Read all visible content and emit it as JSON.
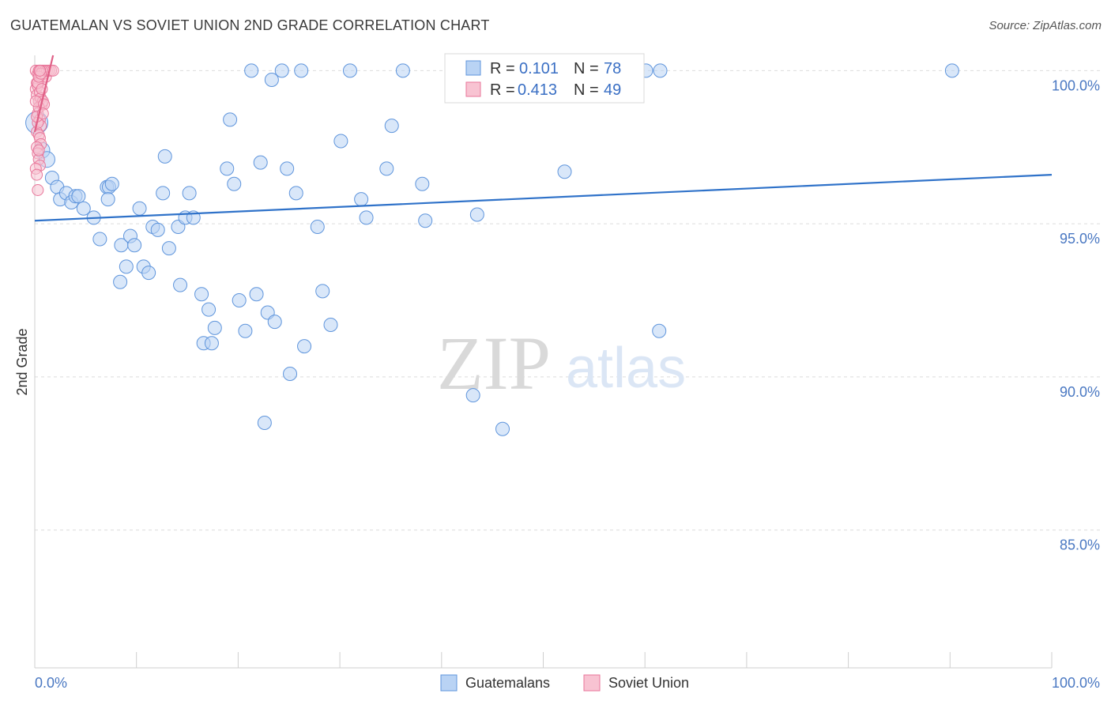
{
  "header": {
    "title": "GUATEMALAN VS SOVIET UNION 2ND GRADE CORRELATION CHART",
    "source": "Source: ZipAtlas.com"
  },
  "watermark": {
    "zip": "ZIP",
    "atlas": "atlas"
  },
  "legend_box": {
    "row1": {
      "r_label": "R =",
      "r_value": "0.101",
      "n_label": "N =",
      "n_value": "78"
    },
    "row2": {
      "r_label": "R =",
      "r_value": "0.413",
      "n_label": "N =",
      "n_value": "49"
    }
  },
  "bottom_legend": {
    "series1": "Guatemalans",
    "series2": "Soviet Union"
  },
  "colors": {
    "blue_fill": "#b9d3f4",
    "blue_stroke": "#5f95dc",
    "blue_line": "#2f72c9",
    "pink_fill": "#f8c3d2",
    "pink_stroke": "#e8769a",
    "pink_line": "#e05f86",
    "tick_text": "#4a78c2"
  },
  "chart_data": {
    "type": "scatter",
    "title": "GUATEMALAN VS SOVIET UNION 2ND GRADE CORRELATION CHART",
    "xlabel": "",
    "ylabel": "2nd Grade",
    "xlim": [
      0,
      100
    ],
    "ylim": [
      80.5,
      100.5
    ],
    "x_tick_labels": [
      "0.0%",
      "100.0%"
    ],
    "y_ticks": [
      85,
      90,
      95,
      100
    ],
    "y_tick_labels": [
      "85.0%",
      "90.0%",
      "95.0%",
      "100.0%"
    ],
    "grid": "horizontal dashed",
    "legend": "top-center",
    "series": [
      {
        "name": "Guatemalans",
        "r": 0.101,
        "n": 78,
        "trend": {
          "x": [
            0,
            100
          ],
          "y": [
            95.1,
            96.6
          ]
        },
        "points": [
          [
            0.2,
            98.3
          ],
          [
            0.7,
            97.4
          ],
          [
            1.2,
            97.1
          ],
          [
            1.7,
            96.5
          ],
          [
            2.2,
            96.2
          ],
          [
            2.5,
            95.8
          ],
          [
            3.1,
            96.0
          ],
          [
            3.6,
            95.7
          ],
          [
            4.0,
            95.9
          ],
          [
            4.3,
            95.9
          ],
          [
            4.8,
            95.5
          ],
          [
            5.8,
            95.2
          ],
          [
            6.4,
            94.5
          ],
          [
            7.1,
            96.2
          ],
          [
            7.3,
            96.2
          ],
          [
            7.2,
            95.8
          ],
          [
            7.6,
            96.3
          ],
          [
            8.4,
            93.1
          ],
          [
            8.5,
            94.3
          ],
          [
            9.0,
            93.6
          ],
          [
            9.4,
            94.6
          ],
          [
            9.8,
            94.3
          ],
          [
            10.3,
            95.5
          ],
          [
            10.7,
            93.6
          ],
          [
            11.2,
            93.4
          ],
          [
            11.6,
            94.9
          ],
          [
            12.1,
            94.8
          ],
          [
            12.6,
            96.0
          ],
          [
            12.8,
            97.2
          ],
          [
            13.2,
            94.2
          ],
          [
            14.1,
            94.9
          ],
          [
            14.3,
            93.0
          ],
          [
            14.8,
            95.2
          ],
          [
            15.2,
            96.0
          ],
          [
            15.6,
            95.2
          ],
          [
            16.4,
            92.7
          ],
          [
            16.6,
            91.1
          ],
          [
            17.1,
            92.2
          ],
          [
            17.4,
            91.1
          ],
          [
            17.7,
            91.6
          ],
          [
            18.9,
            96.8
          ],
          [
            19.2,
            98.4
          ],
          [
            19.6,
            96.3
          ],
          [
            20.1,
            92.5
          ],
          [
            20.7,
            91.5
          ],
          [
            21.3,
            100.0
          ],
          [
            21.8,
            92.7
          ],
          [
            22.2,
            97.0
          ],
          [
            22.6,
            88.5
          ],
          [
            22.9,
            92.1
          ],
          [
            23.3,
            99.7
          ],
          [
            23.6,
            91.8
          ],
          [
            24.3,
            100.0
          ],
          [
            24.8,
            96.8
          ],
          [
            25.1,
            90.1
          ],
          [
            25.7,
            96.0
          ],
          [
            26.2,
            100.0
          ],
          [
            26.5,
            91.0
          ],
          [
            27.8,
            94.9
          ],
          [
            28.3,
            92.8
          ],
          [
            29.1,
            91.7
          ],
          [
            30.1,
            97.7
          ],
          [
            31.0,
            100.0
          ],
          [
            32.1,
            95.8
          ],
          [
            32.6,
            95.2
          ],
          [
            34.6,
            96.8
          ],
          [
            35.1,
            98.2
          ],
          [
            36.2,
            100.0
          ],
          [
            38.1,
            96.3
          ],
          [
            38.4,
            95.1
          ],
          [
            43.1,
            89.4
          ],
          [
            43.5,
            95.3
          ],
          [
            46.0,
            88.3
          ],
          [
            52.1,
            96.7
          ],
          [
            60.1,
            100.0
          ],
          [
            61.5,
            100.0
          ],
          [
            61.4,
            91.5
          ],
          [
            90.2,
            100.0
          ]
        ]
      },
      {
        "name": "Soviet Union",
        "r": 0.413,
        "n": 49,
        "trend": {
          "x": [
            0,
            1.8
          ],
          "y": [
            98.0,
            100.5
          ]
        },
        "points": [
          [
            0.1,
            100.0
          ],
          [
            0.2,
            99.6
          ],
          [
            0.3,
            99.9
          ],
          [
            0.4,
            100.0
          ],
          [
            0.5,
            99.8
          ],
          [
            0.6,
            100.0
          ],
          [
            0.7,
            99.7
          ],
          [
            0.8,
            100.0
          ],
          [
            0.9,
            99.9
          ],
          [
            1.0,
            100.0
          ],
          [
            1.1,
            99.8
          ],
          [
            1.2,
            100.0
          ],
          [
            1.4,
            100.0
          ],
          [
            1.6,
            100.0
          ],
          [
            1.8,
            100.0
          ],
          [
            0.1,
            99.4
          ],
          [
            0.2,
            99.2
          ],
          [
            0.3,
            99.5
          ],
          [
            0.4,
            99.0
          ],
          [
            0.5,
            99.3
          ],
          [
            0.6,
            99.1
          ],
          [
            0.7,
            98.9
          ],
          [
            0.8,
            99.0
          ],
          [
            0.3,
            98.6
          ],
          [
            0.4,
            98.8
          ],
          [
            0.5,
            98.4
          ],
          [
            0.6,
            98.2
          ],
          [
            0.2,
            98.0
          ],
          [
            0.3,
            98.3
          ],
          [
            0.4,
            97.9
          ],
          [
            0.5,
            97.8
          ],
          [
            0.6,
            97.6
          ],
          [
            0.2,
            97.5
          ],
          [
            0.3,
            97.3
          ],
          [
            0.4,
            97.1
          ],
          [
            0.5,
            96.9
          ],
          [
            0.1,
            96.8
          ],
          [
            0.2,
            96.6
          ],
          [
            0.3,
            96.1
          ],
          [
            0.4,
            97.4
          ],
          [
            0.2,
            98.5
          ],
          [
            0.3,
            99.6
          ],
          [
            0.4,
            99.8
          ],
          [
            0.1,
            99.0
          ],
          [
            0.7,
            99.4
          ],
          [
            0.9,
            98.9
          ],
          [
            0.8,
            98.6
          ],
          [
            0.6,
            99.9
          ],
          [
            0.5,
            100.0
          ]
        ]
      }
    ]
  }
}
